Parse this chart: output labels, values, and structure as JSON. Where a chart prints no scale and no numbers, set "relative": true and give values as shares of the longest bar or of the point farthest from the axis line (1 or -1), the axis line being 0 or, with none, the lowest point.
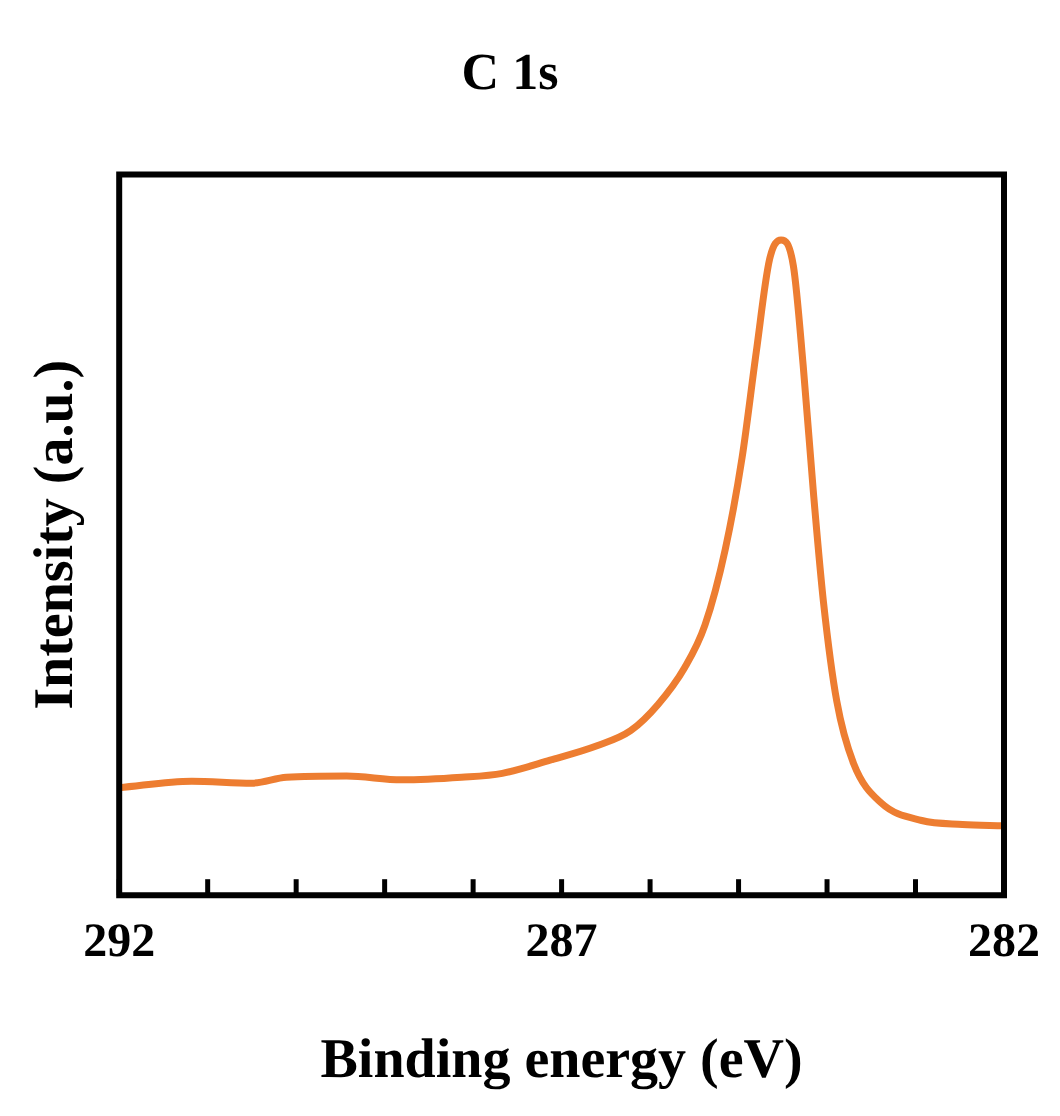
{
  "chart_data": {
    "type": "line",
    "title": "C 1s",
    "xlabel": "Binding energy (eV)",
    "ylabel": "Intensity (a.u.)",
    "relative": true,
    "x": [
      292,
      291.18,
      290.5,
      290.11,
      289.43,
      288.81,
      288.13,
      287.67,
      287.13,
      286.6,
      286.22,
      285.91,
      285.61,
      285.38,
      285.15,
      284.96,
      284.8,
      284.65,
      284.52,
      284.38,
      284.27,
      284.15,
      284.04,
      283.89,
      283.7,
      283.39,
      282.93,
      282.47,
      282.01
    ],
    "series": [
      {
        "color": "#ed7d31",
        "values": [
          0.164,
          0.174,
          0.171,
          0.18,
          0.182,
          0.176,
          0.18,
          0.186,
          0.206,
          0.228,
          0.251,
          0.291,
          0.347,
          0.412,
          0.528,
          0.668,
          0.829,
          0.97,
          1.0,
          0.96,
          0.809,
          0.608,
          0.447,
          0.296,
          0.201,
          0.141,
          0.114,
          0.108,
          0.106
        ]
      }
    ],
    "xlim": [
      292,
      282
    ],
    "xticks": [
      292,
      {
        "value": 291,
        "label": null
      },
      {
        "value": 290,
        "label": null
      },
      {
        "value": 289,
        "label": null
      },
      {
        "value": 288,
        "label": null
      },
      287,
      {
        "value": 286,
        "label": null
      },
      {
        "value": 285,
        "label": null
      },
      {
        "value": 284,
        "label": null
      },
      {
        "value": 283,
        "label": null
      },
      282
    ],
    "grid": false,
    "legend": false,
    "marker": "none",
    "line_style": "solid"
  }
}
